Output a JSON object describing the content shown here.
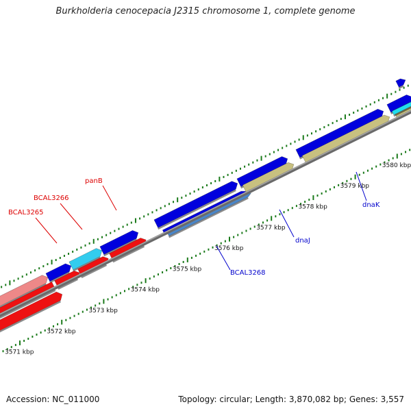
{
  "title": "Burkholderia cenocepacia J2315 chromosome 1, complete genome",
  "footer": {
    "accession": "Accession: NC_011000",
    "summary": "Topology: circular; Length: 3,870,082 bp; Genes: 3,557"
  },
  "ticks": [
    {
      "kbp": 3571,
      "label": "3571 kbp"
    },
    {
      "kbp": 3572,
      "label": "3572 kbp"
    },
    {
      "kbp": 3573,
      "label": "3573 kbp"
    },
    {
      "kbp": 3574,
      "label": "3574 kbp"
    },
    {
      "kbp": 3575,
      "label": "3575 kbp"
    },
    {
      "kbp": 3576,
      "label": "3576 kbp"
    },
    {
      "kbp": 3577,
      "label": "3577 kbp"
    },
    {
      "kbp": 3578,
      "label": "3578 kbp"
    },
    {
      "kbp": 3579,
      "label": "3579 kbp"
    },
    {
      "kbp": 3580,
      "label": "3580 kbp"
    }
  ],
  "colors": {
    "backbone": "#888888",
    "tick": "#1a7a1a",
    "gene_fwd": "#0000dd",
    "gene_fwd_light": "#33ccee",
    "gene_rev": "#ee1111",
    "gene_rev_light": "#ee8888",
    "gene_khaki": "#c8c080",
    "gene_steel": "#4a86c8",
    "gene_cyan": "#22ddee",
    "label_red": "#dd0000",
    "label_blue": "#0000cc"
  },
  "gene_labels": [
    {
      "text": "BCAL3265",
      "color": "label_red"
    },
    {
      "text": "BCAL3266",
      "color": "label_red"
    },
    {
      "text": "panB",
      "color": "label_red"
    },
    {
      "text": "BCAL3268",
      "color": "label_blue"
    },
    {
      "text": "dnaJ",
      "color": "label_blue"
    },
    {
      "text": "dnaK",
      "color": "label_blue"
    }
  ]
}
